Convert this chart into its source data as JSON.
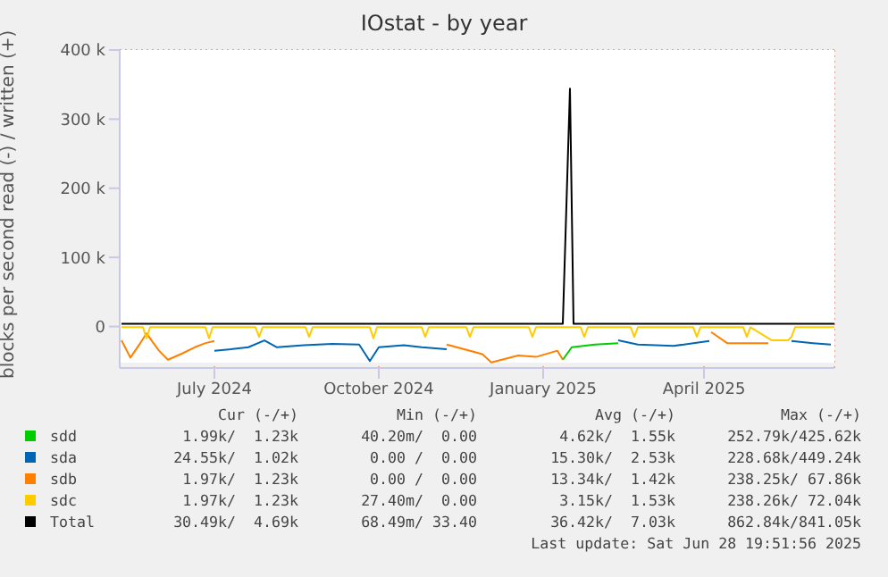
{
  "chart_data": {
    "type": "line",
    "title": "IOstat - by year",
    "ylabel": "blocks per second read (-) / written (+)",
    "xlim": [
      "2024-05-09",
      "2025-06-13"
    ],
    "xticks": [
      {
        "value": "2024-07-01",
        "label": "July 2024"
      },
      {
        "value": "2024-10-01",
        "label": "October 2024"
      },
      {
        "value": "2025-01-01",
        "label": "January 2025"
      },
      {
        "value": "2025-04-01",
        "label": "April 2025"
      }
    ],
    "ylim": [
      -60000,
      400000
    ],
    "yticks": [
      0,
      {
        "value": 100000,
        "label": "100 k"
      },
      {
        "value": 200000,
        "label": "200 k"
      },
      {
        "value": 300000,
        "label": "300 k"
      },
      {
        "value": 400000,
        "label": "400 k"
      }
    ],
    "grid": true,
    "legend": "bottom",
    "marker": "none",
    "line_style": "solid",
    "series": [
      {
        "name": "sdd",
        "color": "#00cc00",
        "x": [
          "2025-01-12",
          "2025-01-17",
          "2025-01-30",
          "2025-02-12"
        ],
        "values": [
          -48000,
          -30000,
          -26000,
          -24000
        ]
      },
      {
        "name": "sda",
        "color": "#0066b3",
        "x": [
          "2024-07-01",
          "2024-07-10",
          "2024-07-20",
          "2024-07-29",
          "2024-08-05",
          "2024-08-20",
          "2024-09-05",
          "2024-09-20",
          "2024-09-26",
          "2024-10-01",
          "2024-10-15",
          "2024-10-25",
          "2024-11-08",
          "2024-12-01",
          "2025-02-12",
          "2025-02-23",
          "2025-03-15",
          "2025-04-04",
          "2025-04-10",
          "2025-05-20",
          "2025-06-01",
          "2025-06-11"
        ],
        "values": [
          -35000,
          -33000,
          -30000,
          -20000,
          -30000,
          -27000,
          -25000,
          -26000,
          -50000,
          -30000,
          -27000,
          -30000,
          -33000,
          null,
          -20000,
          -26000,
          -28000,
          -21000,
          null,
          -21000,
          -24000,
          -26000
        ]
      },
      {
        "name": "sdb",
        "color": "#ff8000",
        "x": [
          "2024-05-10",
          "2024-05-15",
          "2024-05-20",
          "2024-05-24",
          "2024-05-31",
          "2024-06-05",
          "2024-06-13",
          "2024-06-20",
          "2024-06-26",
          "2024-07-01",
          "2024-08-01",
          "2024-11-08",
          "2024-11-28",
          "2024-12-03",
          "2024-12-18",
          "2024-12-28",
          "2025-01-09",
          "2025-01-12",
          "2025-02-01",
          "2025-04-05",
          "2025-04-14",
          "2025-04-25",
          "2025-05-07"
        ],
        "values": [
          -20000,
          -45000,
          -26000,
          -10000,
          -35000,
          -48000,
          -39000,
          -30000,
          -24000,
          -21000,
          null,
          -26000,
          -40000,
          -52000,
          -42000,
          -44000,
          -35000,
          -48000,
          null,
          -8000,
          -24000,
          -24000,
          -24000
        ]
      },
      {
        "name": "sdc",
        "color": "#ffcc00",
        "x": [
          "2024-05-10",
          "2024-05-22",
          "2024-05-24",
          "2024-05-26",
          "2024-06-26",
          "2024-06-28",
          "2024-06-30",
          "2024-07-24",
          "2024-07-26",
          "2024-07-28",
          "2024-08-21",
          "2024-08-23",
          "2024-08-25",
          "2024-09-26",
          "2024-09-28",
          "2024-09-30",
          "2024-10-25",
          "2024-10-27",
          "2024-10-29",
          "2024-11-19",
          "2024-11-21",
          "2024-11-23",
          "2024-12-24",
          "2024-12-26",
          "2024-12-28",
          "2025-01-22",
          "2025-01-24",
          "2025-01-26",
          "2025-02-19",
          "2025-02-21",
          "2025-02-23",
          "2025-03-26",
          "2025-03-28",
          "2025-03-30",
          "2025-04-23",
          "2025-04-25",
          "2025-04-27",
          "2025-05-09",
          "2025-05-18",
          "2025-05-20",
          "2025-05-22",
          "2025-06-13"
        ],
        "values": [
          -1000,
          -1000,
          -17000,
          -1000,
          -1000,
          -17000,
          -1000,
          -1000,
          -15000,
          -1000,
          -1000,
          -15000,
          -1000,
          -1000,
          -17000,
          -1000,
          -1000,
          -15000,
          -1000,
          -1000,
          -15000,
          -1000,
          -1000,
          -15000,
          -1000,
          -1000,
          -15000,
          -1000,
          -1000,
          -15000,
          -1000,
          -1000,
          -15000,
          -1000,
          -1000,
          -15000,
          -1000,
          -20000,
          -20000,
          -15000,
          -1000,
          -1000
        ]
      },
      {
        "name": "Total",
        "color": "#000000",
        "x": [
          "2024-05-10",
          "2024-07-01",
          "2024-10-01",
          "2025-01-12",
          "2025-01-16",
          "2025-01-18",
          "2025-04-01",
          "2025-06-13"
        ],
        "values": [
          4000,
          4000,
          4000,
          4000,
          344000,
          4000,
          4000,
          4000
        ]
      }
    ],
    "annotations": [
      "Cur (-/+)",
      "Min (-/+)",
      "Avg (-/+)",
      "Max (-/+)",
      "1.99k/  1.23k",
      "40.20m/  0.00",
      "4.62k/  1.55k",
      "252.79k/425.62k",
      "24.55k/  1.02k",
      "0.00 /  0.00",
      "15.30k/  2.53k",
      "228.68k/449.24k",
      "1.97k/  1.23k",
      "0.00 /  0.00",
      "13.34k/  1.42k",
      "238.25k/ 67.86k",
      "1.97k/  1.23k",
      "27.40m/  0.00",
      "3.15k/  1.53k",
      "238.26k/ 72.04k",
      "30.49k/  4.69k",
      "68.49m/ 33.40",
      "36.42k/  7.03k",
      "862.84k/841.05k",
      "Last update: Sat Jun 28 19:51:56 2025"
    ]
  }
}
